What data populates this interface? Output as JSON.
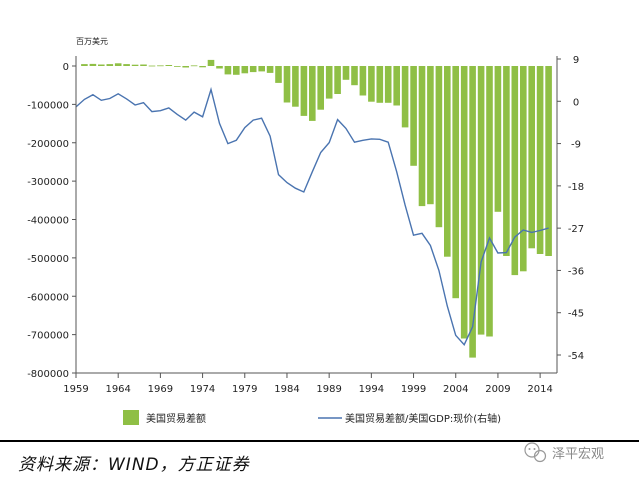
{
  "chart_data": {
    "type": "bar+line",
    "unit_label": "百万美元",
    "left_axis": {
      "min": -800000,
      "max": 0,
      "ticks": [
        0,
        -100000,
        -200000,
        -300000,
        -400000,
        -500000,
        -600000,
        -700000,
        -800000
      ]
    },
    "right_axis": {
      "min": -57,
      "max": 11,
      "ticks": [
        9,
        0,
        -9,
        -18,
        -27,
        -36,
        -45,
        -54
      ]
    },
    "x_axis": {
      "min": 1959,
      "max": 2016,
      "ticks": [
        1959,
        1964,
        1969,
        1974,
        1979,
        1984,
        1989,
        1994,
        1999,
        2004,
        2009,
        2014
      ]
    },
    "series": [
      {
        "name": "美国贸易差额",
        "type": "bar",
        "axis": "left",
        "color": "#8fbf45",
        "x": [
          1960,
          1961,
          1962,
          1963,
          1964,
          1965,
          1966,
          1967,
          1968,
          1969,
          1970,
          1971,
          1972,
          1973,
          1974,
          1975,
          1976,
          1977,
          1978,
          1979,
          1980,
          1981,
          1982,
          1983,
          1984,
          1985,
          1986,
          1987,
          1988,
          1989,
          1990,
          1991,
          1992,
          1993,
          1994,
          1995,
          1996,
          1997,
          1998,
          1999,
          2000,
          2001,
          2002,
          2003,
          2004,
          2005,
          2006,
          2007,
          2008,
          2009,
          2010,
          2011,
          2012,
          2013,
          2014,
          2015
        ],
        "values": [
          5000,
          5500,
          4000,
          5000,
          7000,
          5000,
          3500,
          4000,
          1000,
          1500,
          2500,
          -1500,
          -4000,
          1500,
          -3500,
          16000,
          -6500,
          -22000,
          -23000,
          -19000,
          -16000,
          -14000,
          -18000,
          -44000,
          -95000,
          -106000,
          -130000,
          -143000,
          -114000,
          -85000,
          -73000,
          -36000,
          -50000,
          -77000,
          -93000,
          -96000,
          -96000,
          -103000,
          -160000,
          -260000,
          -365000,
          -360000,
          -420000,
          -497000,
          -605000,
          -710000,
          -760000,
          -700000,
          -705000,
          -380000,
          -495000,
          -545000,
          -535000,
          -475000,
          -490000,
          -495000
        ]
      },
      {
        "name": "美国贸易差额/美国GDP:现价(右轴)",
        "type": "line",
        "axis": "right",
        "color": "#4a74b0",
        "x": [
          1959,
          1960,
          1961,
          1962,
          1963,
          1964,
          1965,
          1966,
          1967,
          1968,
          1969,
          1970,
          1971,
          1972,
          1973,
          1974,
          1975,
          1976,
          1977,
          1978,
          1979,
          1980,
          1981,
          1982,
          1983,
          1984,
          1985,
          1986,
          1987,
          1988,
          1989,
          1990,
          1991,
          1992,
          1993,
          1994,
          1995,
          1996,
          1997,
          1998,
          1999,
          2000,
          2001,
          2002,
          2003,
          2004,
          2005,
          2006,
          2007,
          2008,
          2009,
          2010,
          2011,
          2012,
          2013,
          2014,
          2015
        ],
        "values": [
          -1.2,
          0.4,
          1.4,
          0.2,
          0.6,
          1.6,
          0.5,
          -0.8,
          -0.3,
          -2.2,
          -2.0,
          -1.4,
          -2.8,
          -4.0,
          -2.3,
          -3.3,
          2.5,
          -4.7,
          -9.0,
          -8.3,
          -5.6,
          -4.0,
          -3.6,
          -7.4,
          -15.6,
          -17.3,
          -18.5,
          -19.3,
          -15.0,
          -10.9,
          -8.8,
          -3.9,
          -5.8,
          -8.7,
          -8.3,
          -8.0,
          -8.1,
          -8.7,
          -15.0,
          -22.1,
          -28.5,
          -28.1,
          -30.7,
          -36.0,
          -43.6,
          -49.8,
          -51.8,
          -48.0,
          -34.2,
          -29.1,
          -32.3,
          -32.2,
          -28.9,
          -27.4,
          -27.9,
          -27.5,
          -27.0
        ]
      }
    ],
    "legend_position": "bottom",
    "grid": false
  },
  "source_text": "资料来源：WIND，方正证券",
  "brand_text": "泽平宏观"
}
